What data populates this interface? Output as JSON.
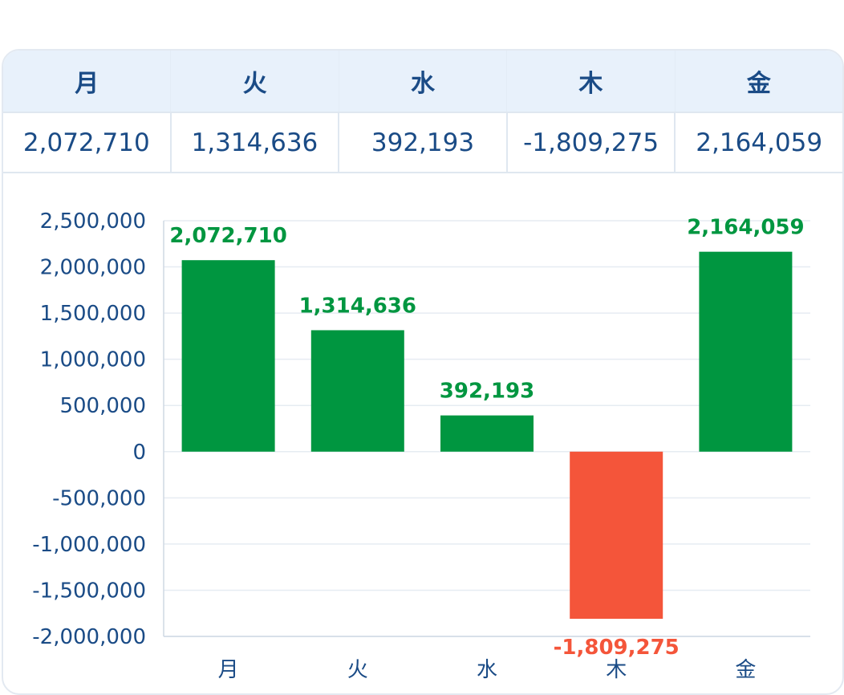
{
  "table": {
    "headers": [
      "月",
      "火",
      "水",
      "木",
      "金"
    ],
    "values": [
      "2,072,710",
      "1,314,636",
      "392,193",
      "-1,809,275",
      "2,164,059"
    ]
  },
  "colors": {
    "positive": "#009640",
    "negative": "#f4553a",
    "text": "#1a4b86",
    "grid": "#e6ecf2"
  },
  "chart_data": {
    "type": "bar",
    "categories": [
      "月",
      "火",
      "水",
      "木",
      "金"
    ],
    "values": [
      2072710,
      1314636,
      392193,
      -1809275,
      2164059
    ],
    "value_labels": [
      "2,072,710",
      "1,314,636",
      "392,193",
      "-1,809,275",
      "2,164,059"
    ],
    "ylim": [
      -2000000,
      2500000
    ],
    "yticks": [
      2500000,
      2000000,
      1500000,
      1000000,
      500000,
      0,
      -500000,
      -1000000,
      -1500000,
      -2000000
    ],
    "ytick_labels": [
      "2,500,000",
      "2,000,000",
      "1,500,000",
      "1,000,000",
      "500,000",
      "0",
      "-500,000",
      "-1,000,000",
      "-1,500,000",
      "-2,000,000"
    ],
    "grid": true,
    "title": "",
    "xlabel": "",
    "ylabel": ""
  }
}
